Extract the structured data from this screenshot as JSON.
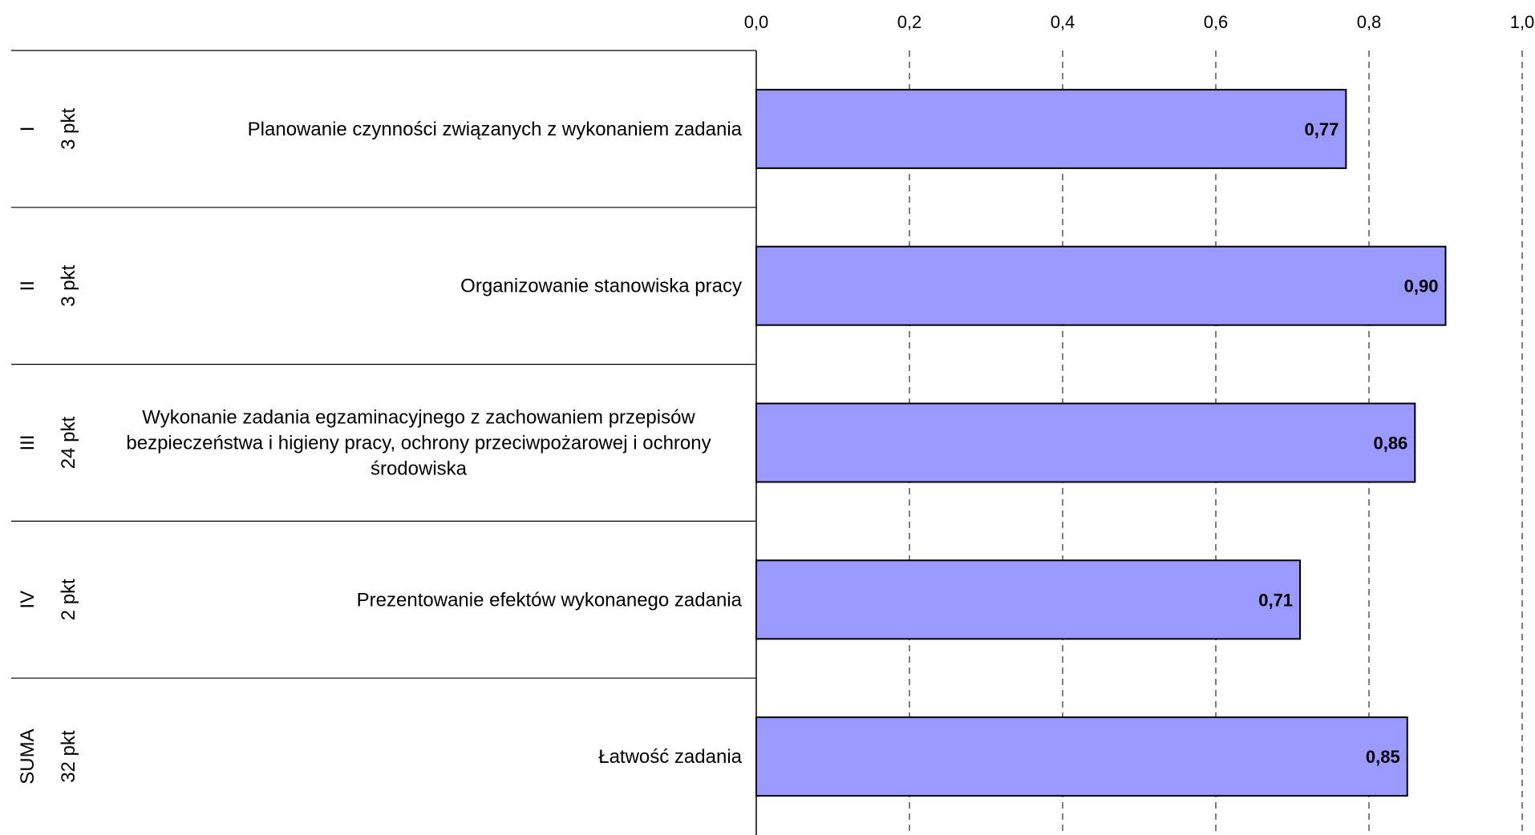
{
  "chart_data": {
    "type": "bar",
    "orientation": "horizontal",
    "title": "",
    "xlabel": "",
    "ylabel": "",
    "xlim": [
      0,
      1.0
    ],
    "x_ticks": [
      "0,0",
      "0,2",
      "0,4",
      "0,6",
      "0,8",
      "1,0"
    ],
    "x_tick_values": [
      0,
      0.2,
      0.4,
      0.6,
      0.8,
      1.0
    ],
    "x_axis_position": "top",
    "grid": "vertical dashed",
    "legend": "none",
    "bar_color": "#9999ff",
    "categories": [
      {
        "roman": "I",
        "points": "3 pkt",
        "label_lines": [
          "Planowanie czynności związanych z wykonaniem zadania"
        ],
        "value": 0.77,
        "value_label": "0,77"
      },
      {
        "roman": "II",
        "points": "3 pkt",
        "label_lines": [
          "Organizowanie stanowiska pracy"
        ],
        "value": 0.9,
        "value_label": "0,90"
      },
      {
        "roman": "III",
        "points": "24 pkt",
        "label_lines": [
          "Wykonanie zadania egzaminacyjnego z zachowaniem przepisów",
          "bezpieczeństwa i higieny pracy, ochrony przeciwpożarowej i ochrony",
          "środowiska"
        ],
        "value": 0.86,
        "value_label": "0,86"
      },
      {
        "roman": "IV",
        "points": "2 pkt",
        "label_lines": [
          "Prezentowanie efektów wykonanego zadania"
        ],
        "value": 0.71,
        "value_label": "0,71"
      },
      {
        "roman": "SUMA",
        "points": "32 pkt",
        "label_lines": [
          "Łatwość zadania"
        ],
        "value": 0.85,
        "value_label": "0,85"
      }
    ]
  }
}
